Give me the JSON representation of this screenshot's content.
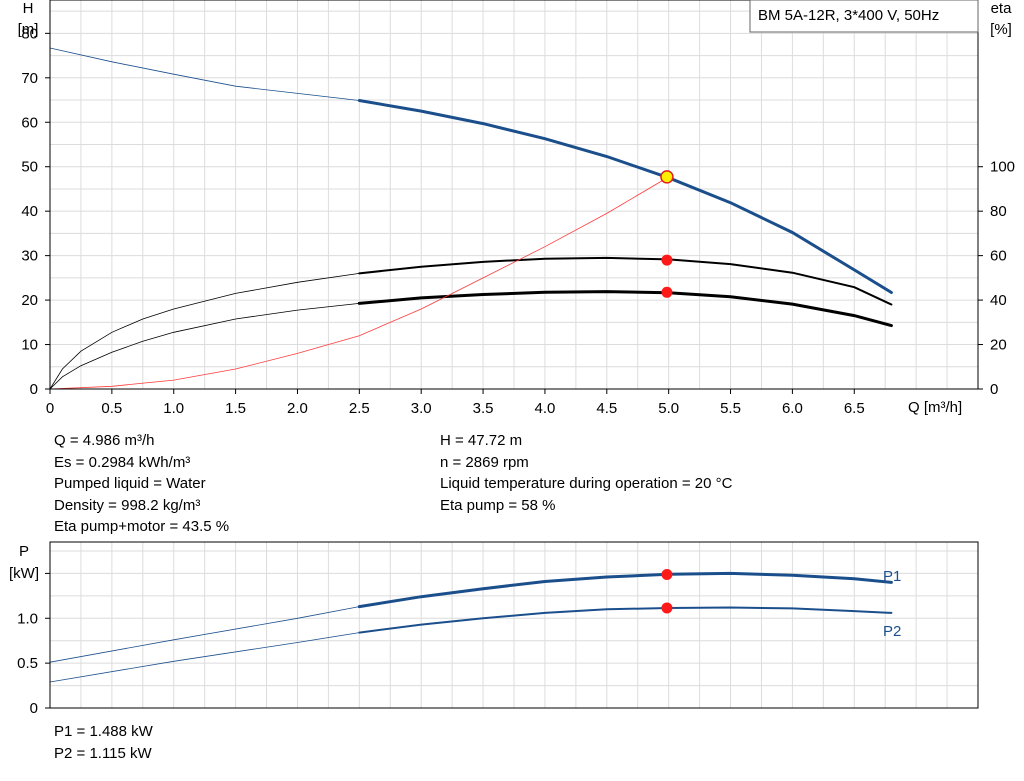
{
  "chart_data": [
    {
      "type": "line",
      "title": "BM 5A-12R, 3*400 V, 50Hz",
      "x_axis": {
        "label": "Q [m³/h]",
        "range": [
          0,
          7.5
        ],
        "ticks": [
          "0",
          "0.5",
          "1.0",
          "1.5",
          "2.0",
          "2.5",
          "3.0",
          "3.5",
          "4.0",
          "4.5",
          "5.0",
          "5.5",
          "6.0",
          "6.5"
        ],
        "tick_values": [
          0,
          0.5,
          1,
          1.5,
          2,
          2.5,
          3,
          3.5,
          4,
          4.5,
          5,
          5.5,
          6,
          6.5
        ]
      },
      "y_left": {
        "label_line1": "H",
        "label_line2": "[m]",
        "range": [
          0,
          87.5
        ],
        "ticks": [
          "0",
          "10",
          "20",
          "30",
          "40",
          "50",
          "60",
          "70",
          "80"
        ],
        "tick_values": [
          0,
          10,
          20,
          30,
          40,
          50,
          60,
          70,
          80
        ]
      },
      "y_right": {
        "label_line1": "eta",
        "label_line2": "[%]",
        "range": [
          0,
          175
        ],
        "ticks": [
          "0",
          "20",
          "40",
          "60",
          "80",
          "100"
        ],
        "tick_values": [
          0,
          20,
          40,
          60,
          80,
          100
        ]
      },
      "grid": true,
      "series": [
        {
          "id": "H",
          "axis": "left",
          "color": "#1b4f8c",
          "x": [
            0,
            0.5,
            1,
            1.5,
            2,
            2.5,
            3,
            3.5,
            4,
            4.5,
            5,
            5.5,
            6,
            6.5,
            6.8
          ],
          "y": [
            76.7,
            73.6,
            70.8,
            68.1,
            66.5,
            64.9,
            62.5,
            59.7,
            56.3,
            52.3,
            47.5,
            41.9,
            35.2,
            26.8,
            21.7
          ],
          "bold_from": 2.5
        },
        {
          "id": "eta-pump",
          "axis": "right",
          "color": "#000000",
          "x": [
            0,
            0.1,
            0.25,
            0.5,
            0.75,
            1,
            1.5,
            2,
            2.5,
            3,
            3.5,
            4,
            4.5,
            5,
            5.5,
            6,
            6.5,
            6.8
          ],
          "y": [
            0,
            9,
            17,
            25.5,
            31.5,
            36,
            43,
            48,
            52,
            55,
            57.2,
            58.6,
            59,
            58.3,
            56.2,
            52.3,
            45.8,
            38
          ],
          "bold_from": 2.5
        },
        {
          "id": "eta-pump-motor",
          "axis": "right",
          "color": "#000000",
          "x": [
            0,
            0.1,
            0.25,
            0.5,
            0.75,
            1,
            1.5,
            2,
            2.5,
            3,
            3.5,
            4,
            4.5,
            5,
            5.5,
            6,
            6.5,
            6.8
          ],
          "y": [
            0,
            5.5,
            10.5,
            16.5,
            21.5,
            25.5,
            31.5,
            35.5,
            38.5,
            41,
            42.5,
            43.5,
            43.8,
            43.3,
            41.5,
            38.2,
            33,
            28.5
          ],
          "bold_from": 2.5,
          "bold_width": 3
        },
        {
          "id": "system-curve",
          "axis": "left",
          "color": "#ff3b3b",
          "x": [
            0,
            0.5,
            1,
            1.5,
            2,
            2.5,
            3,
            3.5,
            4,
            4.5,
            5
          ],
          "y": [
            0,
            0.6,
            2,
            4.5,
            8,
            12,
            18,
            25,
            32,
            39.5,
            47.7
          ]
        }
      ],
      "duty_points": [
        {
          "axis": "left",
          "x": 4.986,
          "y": 47.72,
          "style": "yellow"
        },
        {
          "axis": "right",
          "x": 4.986,
          "y": 58,
          "style": "red"
        },
        {
          "axis": "right",
          "x": 4.986,
          "y": 43.5,
          "style": "red"
        }
      ]
    },
    {
      "type": "line",
      "x_axis": {
        "range": [
          0,
          7.5
        ]
      },
      "y_axis": {
        "label_line1": "P",
        "label_line2": "[kW]",
        "range": [
          0,
          1.85
        ],
        "ticks": [
          "0",
          "0.5",
          "1.0"
        ],
        "tick_values": [
          0,
          0.5,
          1.0
        ]
      },
      "grid": true,
      "series": [
        {
          "name": "P1",
          "color": "#1b4f8c",
          "x": [
            0,
            1,
            2,
            2.5,
            3,
            3.5,
            4,
            4.5,
            5,
            5.5,
            6,
            6.5,
            6.8
          ],
          "y": [
            0.51,
            0.76,
            1.0,
            1.13,
            1.24,
            1.33,
            1.41,
            1.46,
            1.49,
            1.5,
            1.48,
            1.44,
            1.4
          ],
          "bold_from": 2.5
        },
        {
          "name": "P2",
          "color": "#1b4f8c",
          "x": [
            0,
            1,
            2,
            2.5,
            3,
            3.5,
            4,
            4.5,
            5,
            5.5,
            6,
            6.5,
            6.8
          ],
          "y": [
            0.29,
            0.52,
            0.73,
            0.84,
            0.93,
            1.0,
            1.06,
            1.1,
            1.115,
            1.12,
            1.11,
            1.08,
            1.06
          ],
          "bold_from": 2.5
        }
      ],
      "duty_points": [
        {
          "x": 4.986,
          "y": 1.488,
          "style": "red"
        },
        {
          "x": 4.986,
          "y": 1.115,
          "style": "red"
        }
      ]
    }
  ],
  "info": {
    "left": [
      "Q = 4.986 m³/h",
      "Es = 0.2984 kWh/m³",
      "Pumped liquid = Water",
      "Density = 998.2 kg/m³",
      "Eta pump+motor = 43.5 %"
    ],
    "right": [
      "H = 47.72 m",
      "n = 2869 rpm",
      "Liquid temperature during operation = 20 °C",
      "Eta pump = 58 %"
    ],
    "bottom": [
      "P1 = 1.488 kW",
      "P2 = 1.115 kW"
    ]
  }
}
